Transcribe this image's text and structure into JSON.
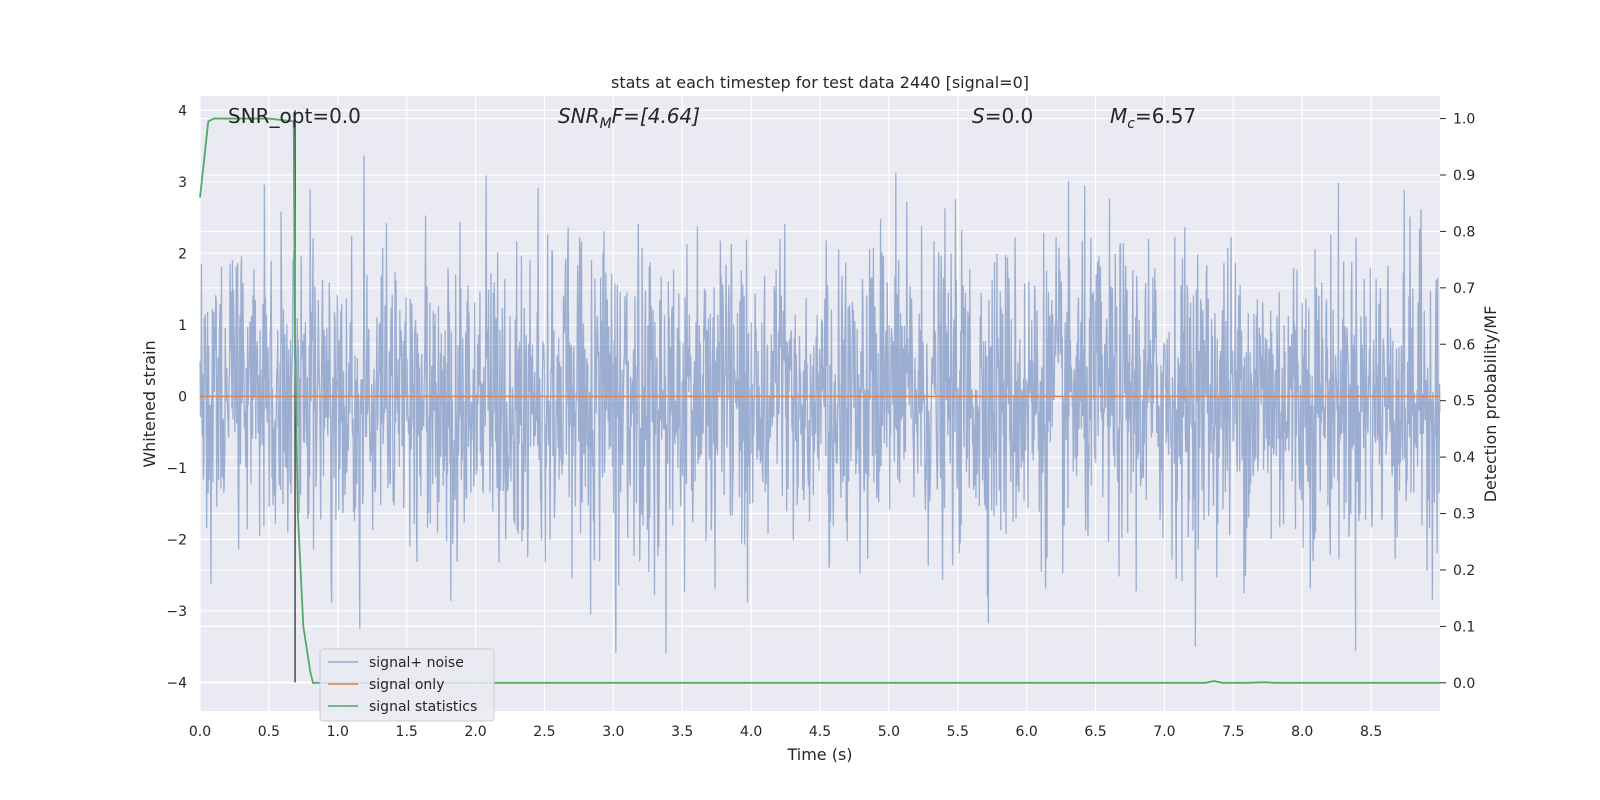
{
  "chart_data": {
    "type": "line",
    "title": "stats at each timestep for test data 2440 [signal=0]",
    "xlabel": "Time (s)",
    "ylabel": "Whitened strain",
    "y2label": "Detection probability/MF",
    "xlim": [
      0.0,
      9.0
    ],
    "ylim": [
      -4.4,
      4.2
    ],
    "y2lim": [
      -0.05,
      1.04
    ],
    "xticks": [
      0.0,
      0.5,
      1.0,
      1.5,
      2.0,
      2.5,
      3.0,
      3.5,
      4.0,
      4.5,
      5.0,
      5.5,
      6.0,
      6.5,
      7.0,
      7.5,
      8.0,
      8.5
    ],
    "xtick_labels": [
      "0.0",
      "0.5",
      "1.0",
      "1.5",
      "2.0",
      "2.5",
      "3.0",
      "3.5",
      "4.0",
      "4.5",
      "5.0",
      "5.5",
      "6.0",
      "6.5",
      "7.0",
      "7.5",
      "8.0",
      "8.5"
    ],
    "yticks": [
      4,
      3,
      2,
      1,
      0,
      -1,
      -2,
      -3,
      -4
    ],
    "ytick_labels": [
      "4",
      "3",
      "2",
      "1",
      "0",
      "−1",
      "−2",
      "−3",
      "−4"
    ],
    "y2ticks": [
      1.0,
      0.9,
      0.8,
      0.7,
      0.6,
      0.5,
      0.4,
      0.3,
      0.2,
      0.1,
      0.0
    ],
    "y2tick_labels": [
      "1.0",
      "0.9",
      "0.8",
      "0.7",
      "0.6",
      "0.5",
      "0.4",
      "0.3",
      "0.2",
      "0.1",
      "0.0"
    ],
    "series": [
      {
        "name": "signal+ noise",
        "color": "#4c72b0",
        "axis": "left",
        "description": "whitened noise, approximately Gaussian, typical envelope ±1.7 with peaks to about ±3.9",
        "envelope": [
          -1.7,
          1.7
        ],
        "peak_range": [
          -3.9,
          3.9
        ],
        "t_range": [
          0.0,
          9.0
        ]
      },
      {
        "name": "signal only",
        "color": "#dd8452",
        "axis": "left",
        "x": [
          0.0,
          9.0
        ],
        "values": [
          0.0,
          0.0
        ]
      },
      {
        "name": "signal statistics",
        "color": "#55a868",
        "axis": "right",
        "x": [
          0.0,
          0.06,
          0.1,
          0.3,
          0.5,
          0.68,
          0.69,
          0.71,
          0.75,
          0.8,
          0.82,
          1.0,
          7.3,
          7.36,
          7.42,
          7.6,
          7.72,
          7.8,
          9.0
        ],
        "values": [
          0.86,
          0.995,
          1.0,
          1.0,
          1.0,
          0.995,
          0.6,
          0.3,
          0.1,
          0.02,
          0.0,
          0.0,
          0.0,
          0.003,
          0.0,
          0.0,
          0.001,
          0.0,
          0.0
        ]
      }
    ],
    "vline": {
      "x": 0.69,
      "ymin": -4.0,
      "ymax": 4.0,
      "color": "#333333"
    },
    "annotations": {
      "snr_opt": "SNR_opt=0.0",
      "snr_mf_var": "SNR",
      "snr_mf_sub": "M",
      "snr_mf_rest": "F=[4.64]",
      "s_var": "S",
      "s_rest": "=0.0",
      "mc_var": "M",
      "mc_sub": "c",
      "mc_rest": "=6.57"
    },
    "legend": {
      "position": "lower-left",
      "entries": [
        "signal+ noise",
        "signal only",
        "signal statistics"
      ]
    },
    "style": {
      "background": "#eaeaf2",
      "grid_color": "#ffffff",
      "grid": true
    }
  }
}
